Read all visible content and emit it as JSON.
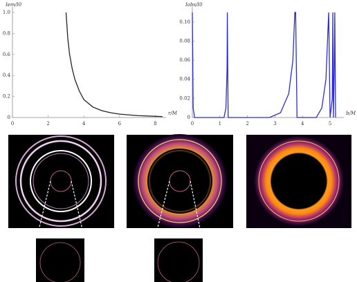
{
  "chart_data": [
    {
      "type": "line",
      "y_label": "Iem/I0",
      "x_label": "r/M",
      "color": "#222222",
      "x": [
        3,
        3.1,
        3.2,
        3.35,
        3.5,
        3.75,
        4,
        4.5,
        5,
        5.5,
        6,
        7,
        8,
        8.4
      ],
      "values": [
        1.0,
        0.75,
        0.6,
        0.46,
        0.36,
        0.25,
        0.17,
        0.1,
        0.065,
        0.045,
        0.032,
        0.018,
        0.011,
        0.009
      ],
      "xlim": [
        0,
        8.6
      ],
      "ylim": [
        0,
        1.0
      ],
      "xticks": [
        0,
        2,
        4,
        6,
        8
      ],
      "yticks": [
        0,
        0.2,
        0.4,
        0.6,
        0.8,
        {
          "value": 1,
          "label": "1.0"
        }
      ]
    },
    {
      "type": "line",
      "y_label": "Iobs/I0",
      "x_label": "b/M",
      "color": "#2b2bd6",
      "x": [
        0,
        0.03,
        0.08,
        1.15,
        1.22,
        1.26,
        1.27,
        1.3,
        2.8,
        3.2,
        3.5,
        3.65,
        3.72,
        3.75,
        3.8,
        4.5,
        4.7,
        4.85,
        4.92,
        4.95,
        5.0,
        5.08,
        5.1,
        5.12,
        5.15,
        5.17,
        5.2
      ],
      "values": [
        0.11,
        0.01,
        0,
        0,
        0.01,
        0.05,
        0.11,
        0,
        0,
        0.005,
        0.025,
        0.06,
        0.11,
        0.11,
        0,
        0,
        0.01,
        0.04,
        0.09,
        0.11,
        0,
        0.02,
        0.11,
        0,
        0.05,
        0.11,
        0
      ],
      "xlim": [
        0,
        5.5
      ],
      "ylim": [
        0,
        0.11
      ],
      "xticks": [
        0,
        1,
        2,
        3,
        4,
        5
      ],
      "yticks": [
        0,
        0.02,
        0.04,
        0.06,
        0.08,
        {
          "value": 0.1,
          "label": "0.10"
        }
      ]
    }
  ]
}
